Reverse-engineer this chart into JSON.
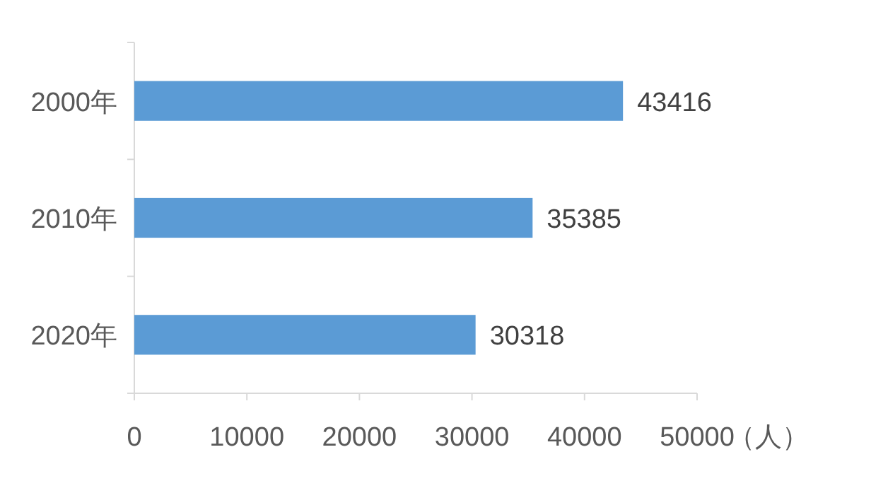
{
  "chart_data": {
    "type": "bar",
    "orientation": "horizontal",
    "categories": [
      "2000年",
      "2010年",
      "2020年"
    ],
    "values": [
      43416,
      35385,
      30318
    ],
    "color": "#5b9bd5",
    "xlim": [
      0,
      50000
    ],
    "xticks": [
      0,
      10000,
      20000,
      30000,
      40000,
      50000
    ],
    "xlabel": "（人）",
    "data_labels": true,
    "grid": false
  }
}
